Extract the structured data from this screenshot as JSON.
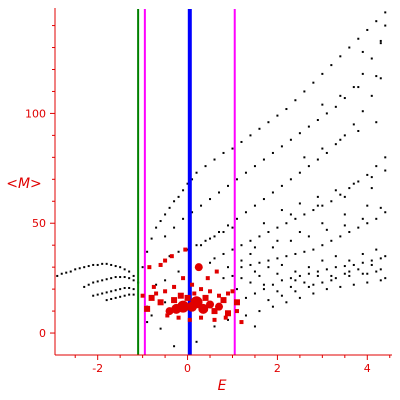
{
  "chart_data": {
    "type": "scatter",
    "xlabel": "E",
    "ylabel": "<M>",
    "xlim": [
      -2.95,
      4.55
    ],
    "ylim": [
      -10,
      148
    ],
    "x_ticks": [
      -2,
      0,
      2,
      4
    ],
    "y_ticks": [
      0,
      50,
      100
    ],
    "grid": false,
    "colors": {
      "axis": "#e00000",
      "tick_text": "#e00000",
      "points_black": "#000000",
      "points_red": "#e00000",
      "line_blue": "#0000ff",
      "line_green": "#008000",
      "line_magenta": "#ff00ff"
    },
    "vertical_lines": [
      {
        "x": 0.05,
        "color": "#0000ff",
        "weight": "thick"
      },
      {
        "x": -1.1,
        "color": "#008000",
        "weight": "normal"
      },
      {
        "x": -0.95,
        "color": "#ff00ff",
        "weight": "normal"
      },
      {
        "x": 1.05,
        "color": "#ff00ff",
        "weight": "normal"
      }
    ],
    "black_points": [
      [
        -2.9,
        26
      ],
      [
        -2.8,
        27
      ],
      [
        -2.7,
        27.5
      ],
      [
        -2.6,
        28
      ],
      [
        -2.5,
        29
      ],
      [
        -2.4,
        29.5
      ],
      [
        -2.3,
        30
      ],
      [
        -2.2,
        30.5
      ],
      [
        -2.1,
        31
      ],
      [
        -2,
        31
      ],
      [
        -1.9,
        31.5
      ],
      [
        -1.8,
        31.5
      ],
      [
        -1.7,
        31
      ],
      [
        -1.6,
        30.5
      ],
      [
        -1.5,
        30
      ],
      [
        -1.4,
        29
      ],
      [
        -1.3,
        28
      ],
      [
        -1.2,
        26
      ],
      [
        -1.1,
        23
      ],
      [
        -2.3,
        21
      ],
      [
        -2.2,
        22
      ],
      [
        -2.1,
        23
      ],
      [
        -2,
        23.5
      ],
      [
        -1.9,
        24
      ],
      [
        -1.8,
        24.5
      ],
      [
        -1.7,
        25
      ],
      [
        -1.6,
        25.5
      ],
      [
        -1.5,
        25.5
      ],
      [
        -1.4,
        25.5
      ],
      [
        -1.3,
        25
      ],
      [
        -1.2,
        24
      ],
      [
        -2.1,
        17
      ],
      [
        -2,
        17.5
      ],
      [
        -1.9,
        18
      ],
      [
        -1.8,
        18.5
      ],
      [
        -1.7,
        19
      ],
      [
        -1.6,
        19.5
      ],
      [
        -1.5,
        20
      ],
      [
        -1.4,
        20.5
      ],
      [
        -1.3,
        20.5
      ],
      [
        -1.2,
        20
      ],
      [
        -1.8,
        15
      ],
      [
        -1.7,
        15.5
      ],
      [
        -1.6,
        16
      ],
      [
        -1.5,
        16.5
      ],
      [
        -1.4,
        17
      ],
      [
        -1.3,
        17.5
      ],
      [
        -1.2,
        17.5
      ],
      [
        -1,
        30
      ],
      [
        -0.9,
        37
      ],
      [
        -0.8,
        43
      ],
      [
        -0.7,
        48
      ],
      [
        -0.6,
        51
      ],
      [
        -0.5,
        54
      ],
      [
        -0.4,
        57
      ],
      [
        -0.3,
        60
      ],
      [
        -0.2,
        62
      ],
      [
        -0.1,
        65
      ],
      [
        0,
        68
      ],
      [
        0.1,
        70
      ],
      [
        0.2,
        73
      ],
      [
        0.4,
        76
      ],
      [
        0.6,
        79
      ],
      [
        0.8,
        82
      ],
      [
        1,
        84
      ],
      [
        1.2,
        87
      ],
      [
        1.4,
        90
      ],
      [
        1.6,
        93
      ],
      [
        1.8,
        96
      ],
      [
        2,
        99
      ],
      [
        2.2,
        102
      ],
      [
        2.4,
        106
      ],
      [
        2.6,
        110
      ],
      [
        2.8,
        114
      ],
      [
        3,
        118
      ],
      [
        3.2,
        122
      ],
      [
        3.4,
        126
      ],
      [
        3.6,
        130
      ],
      [
        3.8,
        134
      ],
      [
        4,
        138
      ],
      [
        4.2,
        142
      ],
      [
        4.4,
        146
      ],
      [
        -0.5,
        44
      ],
      [
        -0.3,
        48
      ],
      [
        -0.1,
        52
      ],
      [
        0.1,
        55
      ],
      [
        0.3,
        58
      ],
      [
        0.5,
        61
      ],
      [
        0.7,
        64
      ],
      [
        0.9,
        67
      ],
      [
        1.1,
        70
      ],
      [
        1.3,
        73
      ],
      [
        1.5,
        76
      ],
      [
        1.7,
        79
      ],
      [
        1.9,
        82
      ],
      [
        2.1,
        85
      ],
      [
        2.3,
        88
      ],
      [
        2.5,
        91
      ],
      [
        2.7,
        94
      ],
      [
        2.9,
        97
      ],
      [
        3.1,
        100
      ],
      [
        3.3,
        103
      ],
      [
        3.5,
        107
      ],
      [
        3.7,
        112
      ],
      [
        3.9,
        118
      ],
      [
        4.1,
        125
      ],
      [
        4.3,
        132
      ],
      [
        4.4,
        140
      ],
      [
        0.3,
        40
      ],
      [
        0.5,
        43
      ],
      [
        0.7,
        46
      ],
      [
        0.9,
        49
      ],
      [
        1.1,
        52
      ],
      [
        1.3,
        55
      ],
      [
        1.5,
        58
      ],
      [
        1.7,
        61
      ],
      [
        1.9,
        64
      ],
      [
        2.1,
        67
      ],
      [
        2.3,
        70
      ],
      [
        2.5,
        73
      ],
      [
        2.7,
        76
      ],
      [
        2.9,
        79
      ],
      [
        3.1,
        82
      ],
      [
        3.3,
        86
      ],
      [
        3.5,
        90
      ],
      [
        3.7,
        95
      ],
      [
        3.9,
        101
      ],
      [
        4.1,
        108
      ],
      [
        4.3,
        116
      ],
      [
        -0.4,
        35
      ],
      [
        -0.2,
        37
      ],
      [
        0,
        38
      ],
      [
        0.2,
        40
      ],
      [
        0.4,
        42
      ],
      [
        0.6,
        44
      ],
      [
        0.8,
        46
      ],
      [
        1,
        48
      ],
      [
        0.6,
        34
      ],
      [
        0.8,
        36
      ],
      [
        1,
        38
      ],
      [
        1.2,
        40
      ],
      [
        1.4,
        42
      ],
      [
        1.6,
        44
      ],
      [
        1.8,
        46
      ],
      [
        2,
        48
      ],
      [
        2.2,
        50
      ],
      [
        2.4,
        52
      ],
      [
        2.6,
        54
      ],
      [
        2.8,
        56
      ],
      [
        3,
        58
      ],
      [
        3.2,
        60
      ],
      [
        3.4,
        63
      ],
      [
        3.6,
        66
      ],
      [
        3.8,
        69
      ],
      [
        4,
        72
      ],
      [
        4.2,
        76
      ],
      [
        4.4,
        80
      ],
      [
        1.2,
        30
      ],
      [
        1.4,
        31
      ],
      [
        1.6,
        32
      ],
      [
        1.8,
        33
      ],
      [
        2,
        34
      ],
      [
        2.2,
        35
      ],
      [
        2.4,
        36
      ],
      [
        2.6,
        37
      ],
      [
        2.8,
        38
      ],
      [
        3,
        40
      ],
      [
        3.2,
        42
      ],
      [
        3.4,
        44
      ],
      [
        3.6,
        46
      ],
      [
        3.8,
        48
      ],
      [
        4,
        50
      ],
      [
        4.2,
        52
      ],
      [
        4.4,
        55
      ],
      [
        1.1,
        14
      ],
      [
        1.3,
        16
      ],
      [
        1.5,
        18
      ],
      [
        1.7,
        20
      ],
      [
        1.9,
        22
      ],
      [
        2.1,
        24
      ],
      [
        2.3,
        25
      ],
      [
        2.5,
        26
      ],
      [
        2.7,
        27
      ],
      [
        2.9,
        28
      ],
      [
        3.1,
        29
      ],
      [
        3.3,
        30
      ],
      [
        3.5,
        30.5
      ],
      [
        3.7,
        31
      ],
      [
        3.9,
        32
      ],
      [
        4.1,
        33
      ],
      [
        4.3,
        34
      ],
      [
        4.4,
        35
      ],
      [
        1.3,
        8
      ],
      [
        1.6,
        10
      ],
      [
        1.9,
        12
      ],
      [
        2.2,
        14
      ],
      [
        2.5,
        16
      ],
      [
        2.8,
        18
      ],
      [
        3.1,
        20
      ],
      [
        3.4,
        21
      ],
      [
        3.7,
        22
      ],
      [
        4,
        23
      ],
      [
        4.3,
        24
      ],
      [
        1.1,
        20
      ],
      [
        1.4,
        23
      ],
      [
        1.7,
        22
      ],
      [
        2,
        19
      ],
      [
        2.3,
        21
      ],
      [
        2.6,
        23
      ],
      [
        2.9,
        26
      ],
      [
        3.2,
        24
      ],
      [
        3.5,
        27
      ],
      [
        3.8,
        29
      ],
      [
        4.1,
        31
      ],
      [
        4.4,
        25
      ],
      [
        1.5,
        28
      ],
      [
        1.8,
        30
      ],
      [
        2.1,
        31
      ],
      [
        2.4,
        28
      ],
      [
        2.7,
        30
      ],
      [
        3,
        33
      ],
      [
        3.3,
        35
      ],
      [
        3.6,
        33
      ],
      [
        3.9,
        36
      ],
      [
        4.2,
        38
      ],
      [
        1.2,
        25
      ],
      [
        1.6,
        26
      ],
      [
        2,
        27
      ],
      [
        2.4,
        24
      ],
      [
        2.8,
        22
      ],
      [
        3.2,
        26
      ],
      [
        3.6,
        28
      ],
      [
        4,
        27
      ],
      [
        4.3,
        29
      ],
      [
        1.4,
        36
      ],
      [
        1.9,
        39
      ],
      [
        2.3,
        42
      ],
      [
        2.7,
        44
      ],
      [
        3.1,
        47
      ],
      [
        3.5,
        49
      ],
      [
        3.9,
        52
      ],
      [
        4.3,
        57
      ],
      [
        2.1,
        56
      ],
      [
        2.5,
        59
      ],
      [
        2.9,
        62
      ],
      [
        3.3,
        65
      ],
      [
        3.7,
        68
      ],
      [
        4.1,
        71
      ],
      [
        4.4,
        74
      ],
      [
        2.6,
        80
      ],
      [
        3,
        84
      ],
      [
        3.4,
        88
      ],
      [
        3.8,
        92
      ],
      [
        4.2,
        96
      ],
      [
        3,
        104
      ],
      [
        3.4,
        108
      ],
      [
        3.8,
        112
      ],
      [
        4.2,
        117
      ],
      [
        3.9,
        128
      ],
      [
        4.3,
        133
      ],
      [
        1.8,
        15
      ],
      [
        2.1,
        17
      ],
      [
        2.4,
        19
      ],
      [
        2.7,
        21
      ],
      [
        3,
        23
      ],
      [
        3.3,
        25
      ],
      [
        3.6,
        26
      ],
      [
        3.9,
        27
      ],
      [
        4.2,
        28
      ],
      [
        1,
        26
      ],
      [
        1.2,
        33
      ],
      [
        1.5,
        39
      ],
      [
        2,
        42
      ],
      [
        2.5,
        46
      ],
      [
        3,
        50
      ],
      [
        3.5,
        54
      ],
      [
        4,
        58
      ],
      [
        1.7,
        50
      ],
      [
        2.3,
        54
      ],
      [
        2.9,
        58
      ],
      [
        3.5,
        62
      ],
      [
        4.1,
        66
      ],
      [
        -0.2,
        28
      ],
      [
        0.2,
        30
      ],
      [
        0.5,
        32
      ],
      [
        0.9,
        30
      ],
      [
        -0.7,
        22
      ],
      [
        -0.5,
        24
      ],
      [
        0.8,
        25
      ],
      [
        -0.8,
        8
      ],
      [
        -0.9,
        5
      ],
      [
        0.6,
        3
      ],
      [
        0.9,
        6
      ],
      [
        1.2,
        5
      ],
      [
        1.5,
        3
      ],
      [
        -0.6,
        2
      ],
      [
        0.2,
        -4
      ],
      [
        -0.3,
        -6
      ],
      [
        -0.9,
        12
      ],
      [
        -0.5,
        14
      ]
    ],
    "red_points": [
      [
        -0.1,
        12,
        6
      ],
      [
        -0.25,
        11,
        5
      ],
      [
        0.1,
        12,
        5
      ],
      [
        0.2,
        14,
        6
      ],
      [
        0.35,
        11,
        5
      ],
      [
        -0.4,
        10,
        4
      ],
      [
        0.5,
        13,
        4
      ],
      [
        0.7,
        12,
        4
      ],
      [
        0.25,
        30,
        4
      ],
      [
        0.6,
        10,
        3
      ],
      [
        0.8,
        15,
        3
      ],
      [
        0.9,
        9,
        3
      ],
      [
        1.1,
        14,
        3
      ],
      [
        -0.6,
        14,
        3
      ],
      [
        -0.8,
        16,
        3
      ],
      [
        -0.9,
        11,
        3
      ],
      [
        -1.0,
        17,
        2
      ],
      [
        -0.7,
        18,
        2
      ],
      [
        -0.5,
        19,
        2
      ],
      [
        -0.3,
        21,
        2
      ],
      [
        -0.1,
        25,
        2
      ],
      [
        -0.35,
        35,
        2
      ],
      [
        -0.05,
        38,
        2
      ],
      [
        0.1,
        22,
        2
      ],
      [
        0.3,
        20,
        2
      ],
      [
        0.5,
        19,
        2
      ],
      [
        0.7,
        17,
        2
      ],
      [
        0.9,
        18,
        2
      ],
      [
        1,
        19,
        2
      ],
      [
        -0.6,
        31,
        2
      ],
      [
        -0.5,
        33,
        2
      ],
      [
        -0.85,
        30,
        2
      ],
      [
        -0.75,
        21,
        2
      ],
      [
        -0.45,
        8,
        2
      ],
      [
        -0.2,
        7,
        2
      ],
      [
        0.05,
        6,
        2
      ],
      [
        0.3,
        7,
        2
      ],
      [
        0.6,
        6,
        2
      ],
      [
        0.85,
        7,
        2
      ],
      [
        1.2,
        5,
        2
      ],
      [
        1.1,
        10,
        2
      ],
      [
        0.4,
        16,
        3
      ],
      [
        0.0,
        16,
        3
      ],
      [
        -0.15,
        17,
        3
      ],
      [
        0.15,
        18,
        2
      ],
      [
        -0.3,
        15,
        3
      ],
      [
        0.45,
        25,
        2
      ],
      [
        0.65,
        28,
        2
      ]
    ]
  }
}
